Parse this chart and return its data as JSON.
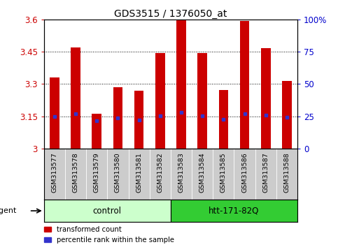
{
  "title": "GDS3515 / 1376050_at",
  "samples": [
    "GSM313577",
    "GSM313578",
    "GSM313579",
    "GSM313580",
    "GSM313581",
    "GSM313582",
    "GSM313583",
    "GSM313584",
    "GSM313585",
    "GSM313586",
    "GSM313587",
    "GSM313588"
  ],
  "bar_tops": [
    3.33,
    3.47,
    3.16,
    3.285,
    3.268,
    3.445,
    3.598,
    3.445,
    3.272,
    3.595,
    3.468,
    3.315
  ],
  "bar_base": 3.0,
  "blue_dots": [
    3.148,
    3.16,
    3.13,
    3.143,
    3.132,
    3.153,
    3.167,
    3.153,
    3.135,
    3.163,
    3.155,
    3.145
  ],
  "control_label": "control",
  "treatment_label": "htt-171-82Q",
  "agent_label": "agent",
  "n_control": 6,
  "n_treatment": 6,
  "ylim": [
    3.0,
    3.6
  ],
  "yticks": [
    3.0,
    3.15,
    3.3,
    3.45,
    3.6
  ],
  "ytick_labels": [
    "3",
    "3.15",
    "3.3",
    "3.45",
    "3.6"
  ],
  "right_ytick_percents": [
    0,
    25,
    50,
    75,
    100
  ],
  "right_ytick_labels": [
    "0",
    "25",
    "50",
    "75",
    "100%"
  ],
  "bar_color": "#cc0000",
  "blue_dot_color": "#3333cc",
  "control_bg": "#ccffcc",
  "treatment_bg": "#33cc33",
  "tick_label_bg": "#cccccc",
  "legend_red_label": "transformed count",
  "legend_blue_label": "percentile rank within the sample",
  "bar_width": 0.45
}
